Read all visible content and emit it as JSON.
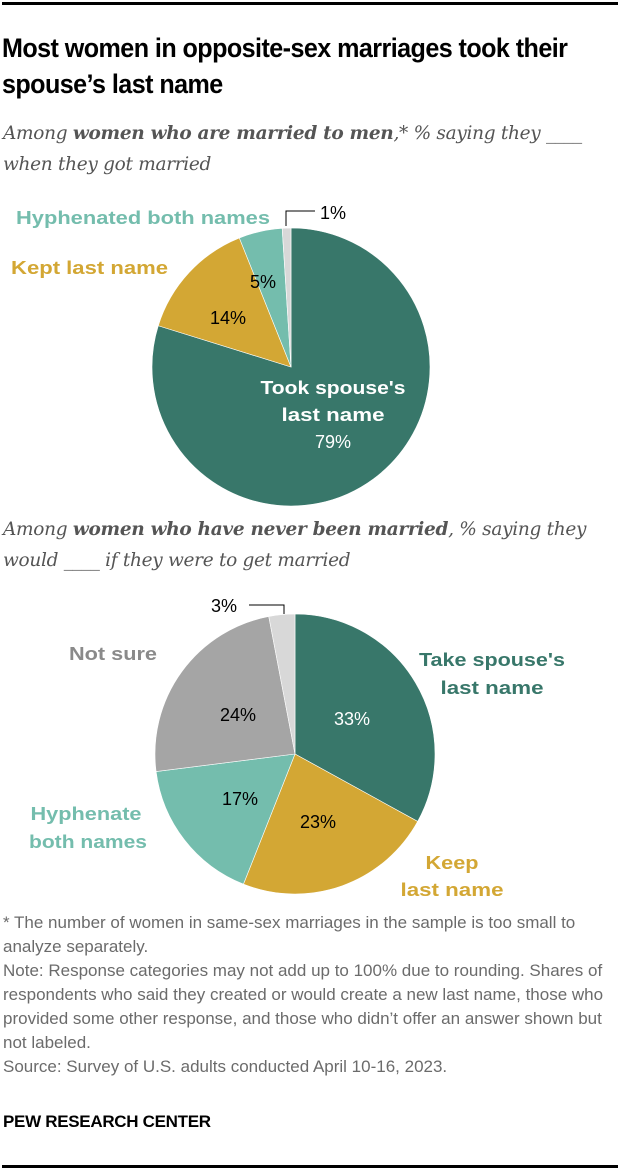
{
  "title": "Most women in opposite-sex marriages took their spouse’s last name",
  "subtitle1": {
    "pre": "Among ",
    "bold": "women who are married to men",
    "post": ",* % saying they ____ when they got married"
  },
  "subtitle2": {
    "pre": "Among ",
    "bold": "women who have never been married",
    "post": ", % saying they would ____ if they were to get married"
  },
  "colors": {
    "took": "#38776a",
    "kept": "#d3a734",
    "hyphen": "#74bdad",
    "not_sure": "#a5a5a5",
    "other": "#d8d8d8"
  },
  "chart_data": [
    {
      "type": "pie",
      "title": "Among women who are married to men, % saying they ____ when they got married",
      "categories": [
        "Took spouse's last name",
        "Kept last name",
        "Hyphenated both names",
        "Other (unlabeled)"
      ],
      "values": [
        79,
        14,
        5,
        1
      ],
      "labels": {
        "took": "Took spouse's last name",
        "took_line1": "Took spouse's",
        "took_line2": "last name",
        "took_value": "79%",
        "kept": "Kept last name",
        "kept_value": "14%",
        "hyphen": "Hyphenated both names",
        "hyphen_value": "5%",
        "other_value": "1%"
      }
    },
    {
      "type": "pie",
      "title": "Among women who have never been married, % saying they would ____ if they were to get married",
      "categories": [
        "Take spouse's last name",
        "Keep last name",
        "Hyphenate both names",
        "Not sure",
        "Other (unlabeled)"
      ],
      "values": [
        33,
        23,
        17,
        24,
        3
      ],
      "labels": {
        "take_line1": "Take spouse's",
        "take_line2": "last name",
        "take_value": "33%",
        "keep_line1": "Keep",
        "keep_line2": "last name",
        "keep_value": "23%",
        "hyphen_line1": "Hyphenate",
        "hyphen_line2": "both names",
        "hyphen_value": "17%",
        "not_sure": "Not sure",
        "not_sure_value": "24%",
        "other_value": "3%"
      }
    }
  ],
  "notes": {
    "footnote": "* The number of women in same-sex marriages in the sample is too small to analyze separately.",
    "note": "Note: Response categories may not add up to 100% due to rounding. Shares of respondents who said they created or would create a new last name, those who provided some other response, and those who didn’t offer an answer shown but not labeled.",
    "source": "Source: Survey of U.S. adults conducted April 10-16, 2023."
  },
  "brand": "PEW RESEARCH CENTER"
}
